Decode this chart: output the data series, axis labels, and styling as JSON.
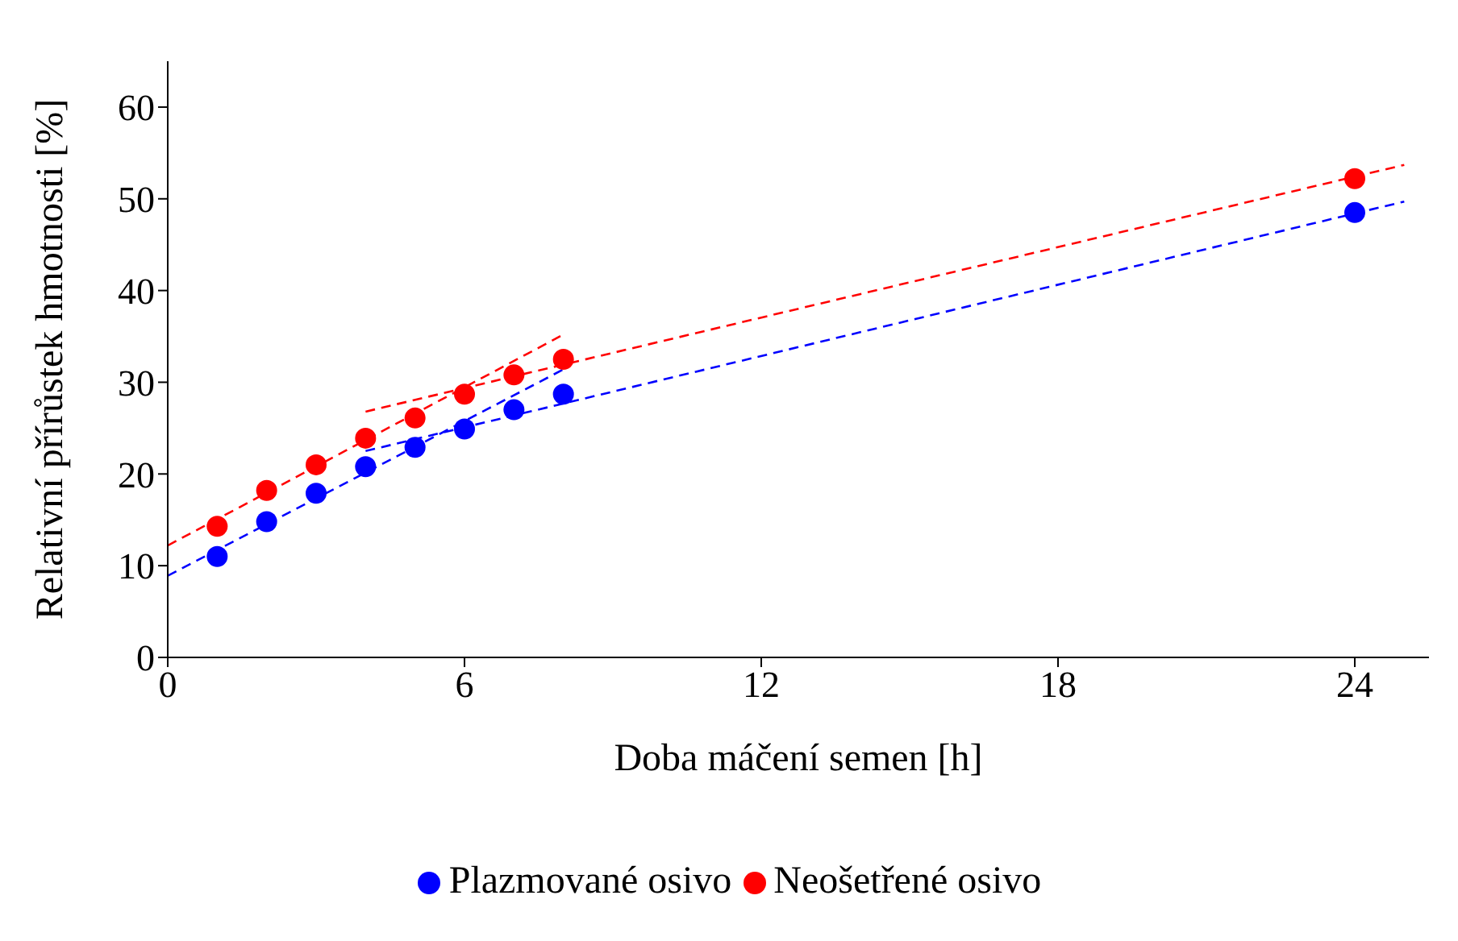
{
  "chart_data": {
    "type": "scatter",
    "xlabel": "Doba máčení semen [h]",
    "ylabel": "Relativní přírůstek hmotnosti [%]",
    "xlim": [
      0,
      25.5
    ],
    "xticks": [
      0,
      6,
      12,
      18,
      24
    ],
    "ylim": [
      0,
      65
    ],
    "yticks": [
      0,
      10,
      20,
      30,
      40,
      50,
      60
    ],
    "grid": false,
    "legend": "bottom",
    "series": [
      {
        "name": "Plazmované osivo",
        "color": "#0000ff",
        "marker": "circle",
        "x": [
          1,
          2,
          3,
          4,
          5,
          6,
          7,
          8,
          24
        ],
        "values": [
          11.0,
          14.8,
          17.9,
          20.8,
          22.9,
          24.9,
          27.0,
          28.7,
          48.5
        ]
      },
      {
        "name": "Neošetřené osivo",
        "color": "#ff0000",
        "marker": "circle",
        "x": [
          1,
          2,
          3,
          4,
          5,
          6,
          7,
          8,
          24
        ],
        "values": [
          14.3,
          18.2,
          21.0,
          23.9,
          26.1,
          28.7,
          30.8,
          32.5,
          52.2
        ]
      },
      {
        "type": "line",
        "color": "#0000ff",
        "line_style": "dashed",
        "marker": "none",
        "x": [
          0,
          8
        ],
        "values": [
          8.9,
          31.4
        ]
      },
      {
        "type": "line",
        "color": "#0000ff",
        "line_style": "dashed",
        "marker": "none",
        "x": [
          4,
          25
        ],
        "values": [
          22.5,
          49.7
        ]
      },
      {
        "type": "line",
        "color": "#ff0000",
        "line_style": "dashed",
        "marker": "none",
        "x": [
          0,
          8
        ],
        "values": [
          12.2,
          35.2
        ]
      },
      {
        "type": "line",
        "color": "#ff0000",
        "line_style": "dashed",
        "marker": "none",
        "x": [
          4,
          25
        ],
        "values": [
          26.8,
          53.7
        ]
      }
    ]
  }
}
